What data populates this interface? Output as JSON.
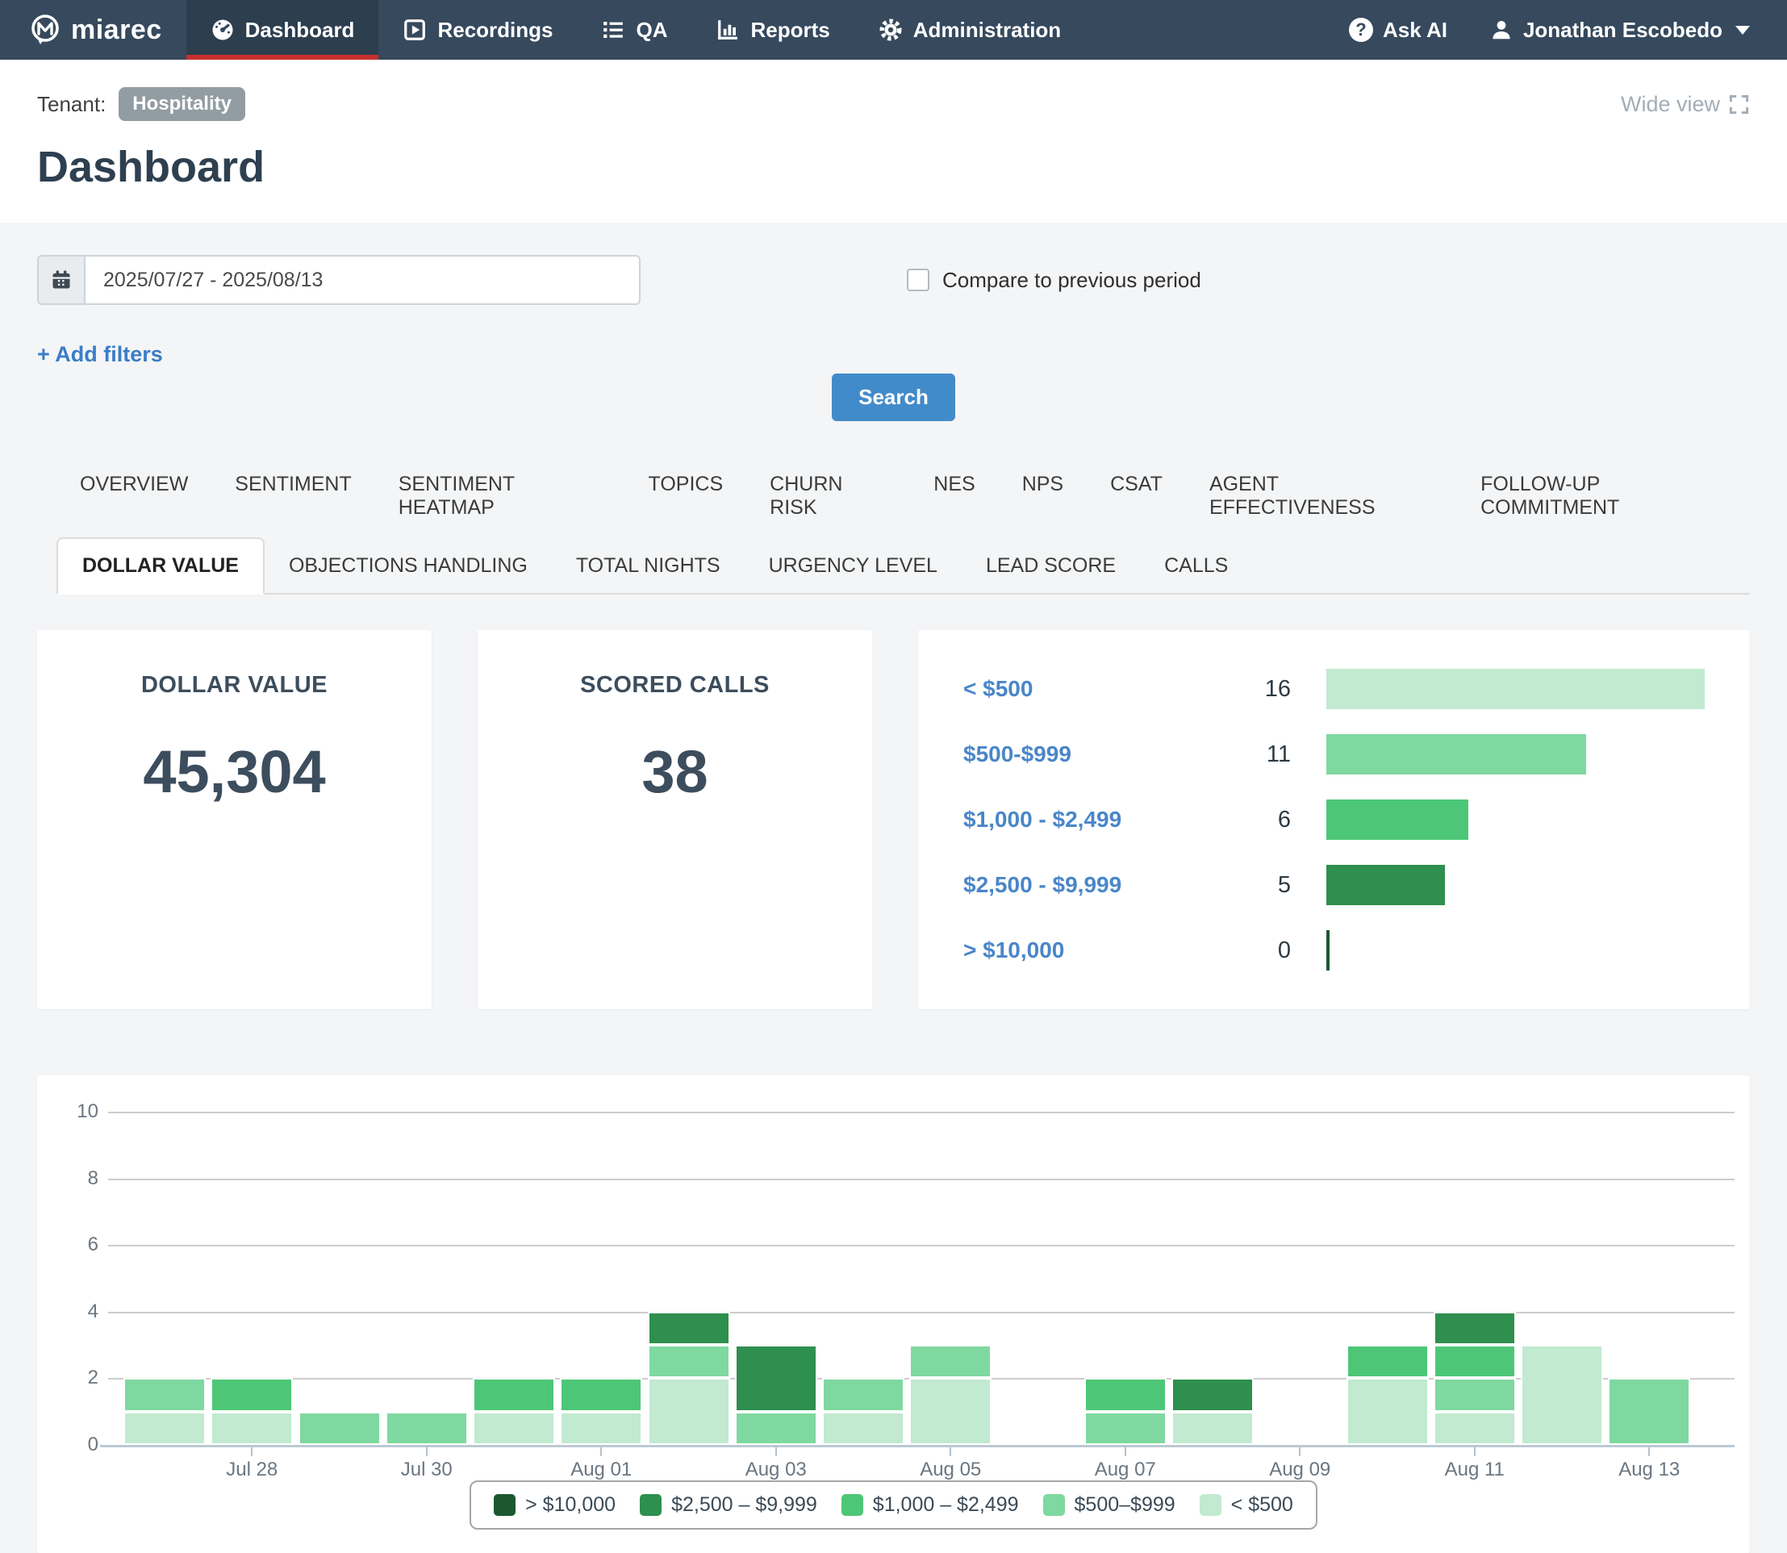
{
  "navbar": {
    "brand": "miarec",
    "items": [
      {
        "label": "Dashboard",
        "icon": "gauge-icon",
        "active": true
      },
      {
        "label": "Recordings",
        "icon": "recordings-icon",
        "active": false
      },
      {
        "label": "QA",
        "icon": "list-icon",
        "active": false
      },
      {
        "label": "Reports",
        "icon": "bar-chart-icon",
        "active": false
      },
      {
        "label": "Administration",
        "icon": "gear-icon",
        "active": false
      }
    ],
    "ask_ai_label": "Ask AI",
    "user_name": "Jonathan Escobedo"
  },
  "header": {
    "tenant_label": "Tenant:",
    "tenant_badge": "Hospitality",
    "wide_view_label": "Wide view",
    "page_title": "Dashboard"
  },
  "filters": {
    "date_range_value": "2025/07/27 - 2025/08/13",
    "compare_checkbox_label": "Compare to previous period",
    "compare_checked": false,
    "add_filters_label": "+ Add filters",
    "search_button_label": "Search"
  },
  "tabs": {
    "row1": [
      "OVERVIEW",
      "SENTIMENT",
      "SENTIMENT HEATMAP",
      "TOPICS",
      "CHURN RISK",
      "NES",
      "NPS",
      "CSAT",
      "AGENT EFFECTIVENESS",
      "FOLLOW-UP COMMITMENT"
    ],
    "row2": [
      {
        "label": "DOLLAR VALUE",
        "active": true
      },
      {
        "label": "OBJECTIONS HANDLING",
        "active": false
      },
      {
        "label": "TOTAL NIGHTS",
        "active": false
      },
      {
        "label": "URGENCY LEVEL",
        "active": false
      },
      {
        "label": "LEAD SCORE",
        "active": false
      },
      {
        "label": "CALLS",
        "active": false
      }
    ]
  },
  "kpi_cards": [
    {
      "title": "DOLLAR VALUE",
      "value": "45,304"
    },
    {
      "title": "SCORED CALLS",
      "value": "38"
    }
  ],
  "distribution": {
    "max_count": 16,
    "rows": [
      {
        "label": "< $500",
        "count": 16,
        "color": "#c1ead0"
      },
      {
        "label": "$500-$999",
        "count": 11,
        "color": "#7fd8a0"
      },
      {
        "label": "$1,000 - $2,499",
        "count": 6,
        "color": "#4dc777"
      },
      {
        "label": "$2,500 - $9,999",
        "count": 5,
        "color": "#2e8f4e"
      },
      {
        "label": "> $10,000",
        "count": 0,
        "color": "#1d5732"
      }
    ]
  },
  "chart_data": {
    "type": "bar",
    "stacked": true,
    "title": "",
    "xlabel": "",
    "ylabel": "",
    "ylim": [
      0,
      10
    ],
    "yticks": [
      0,
      2,
      4,
      6,
      8,
      10
    ],
    "grid": true,
    "legend_position": "bottom",
    "x": [
      "Jul 27",
      "Jul 28",
      "Jul 29",
      "Jul 30",
      "Jul 31",
      "Aug 01",
      "Aug 02",
      "Aug 03",
      "Aug 04",
      "Aug 05",
      "Aug 06",
      "Aug 07",
      "Aug 08",
      "Aug 09",
      "Aug 10",
      "Aug 11",
      "Aug 12",
      "Aug 13"
    ],
    "x_tick_labels": [
      "Jul 28",
      "Jul 30",
      "Aug 01",
      "Aug 03",
      "Aug 05",
      "Aug 07",
      "Aug 09",
      "Aug 11",
      "Aug 13"
    ],
    "series": [
      {
        "name": "< $500",
        "color": "#c1ead0",
        "values": [
          1,
          1,
          0,
          0,
          1,
          1,
          2,
          0,
          1,
          2,
          0,
          0,
          1,
          0,
          2,
          1,
          3,
          0
        ]
      },
      {
        "name": "$500–$999",
        "color": "#7fd8a0",
        "values": [
          1,
          0,
          1,
          1,
          0,
          0,
          1,
          1,
          1,
          1,
          0,
          1,
          0,
          0,
          0,
          1,
          0,
          2
        ]
      },
      {
        "name": "$1,000 – $2,499",
        "color": "#4dc777",
        "values": [
          0,
          1,
          0,
          0,
          1,
          1,
          0,
          0,
          0,
          0,
          0,
          1,
          0,
          0,
          1,
          1,
          0,
          0
        ]
      },
      {
        "name": "$2,500 – $9,999",
        "color": "#2e8f4e",
        "values": [
          0,
          0,
          0,
          0,
          0,
          0,
          1,
          2,
          0,
          0,
          0,
          0,
          1,
          0,
          0,
          1,
          0,
          0
        ]
      },
      {
        "name": "> $10,000",
        "color": "#1d5732",
        "values": [
          0,
          0,
          0,
          0,
          0,
          0,
          0,
          0,
          0,
          0,
          0,
          0,
          0,
          0,
          0,
          0,
          0,
          0
        ]
      }
    ],
    "legend": [
      {
        "label": "> $10,000",
        "color": "#1d5732"
      },
      {
        "label": "$2,500 – $9,999",
        "color": "#2e8f4e"
      },
      {
        "label": "$1,000 – $2,499",
        "color": "#4dc777"
      },
      {
        "label": "$500–$999",
        "color": "#7fd8a0"
      },
      {
        "label": "< $500",
        "color": "#c1ead0"
      }
    ]
  }
}
